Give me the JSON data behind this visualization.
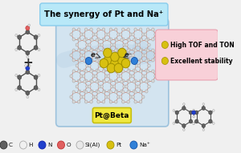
{
  "title": "The synergy of Pt and Na⁺",
  "title_box_color": "#b8e8f8",
  "title_box_edge": "#88ccec",
  "result_box_color": "#f8d0d8",
  "result_box_edge": "#e8a0b0",
  "result_lines": [
    "High TOF and TON",
    "Excellent stability"
  ],
  "ptbeta_label": "Pt@Beta",
  "ptbeta_box_color": "#f0e840",
  "ptbeta_box_edge": "#c8c010",
  "legend_items": [
    {
      "label": "C",
      "color": "#606060",
      "edge": "#303030"
    },
    {
      "label": "H",
      "color": "#f0f0f0",
      "edge": "#aaaaaa"
    },
    {
      "label": "N",
      "color": "#2040cc",
      "edge": "#1020aa"
    },
    {
      "label": "O",
      "color": "#e06060",
      "edge": "#c03030"
    },
    {
      "label": "Si(Al)",
      "color": "#e8e8e8",
      "edge": "#aaaaaa"
    },
    {
      "label": "Pt",
      "color": "#d8c010",
      "edge": "#a09000"
    },
    {
      "label": "Na⁺",
      "color": "#3080d8",
      "edge": "#1050a8"
    }
  ],
  "electron_label": "e⁻",
  "plus_sign": "+",
  "bg_color": "#f0f0f0",
  "main_box_color": "#c0dcf0",
  "main_box_edge": "#70a8d0",
  "zeolite_frame_color": "#d08878",
  "zeolite_node_color": "#d8d8d8",
  "zeolite_node_edge": "#aaaaaa",
  "pt_cluster_color": "#d8c010",
  "pt_cluster_edge": "#a09000",
  "na_ion_color": "#3080d8",
  "na_ion_edge": "#1050a8",
  "arrow_color": "#b8c8d8",
  "molecule_bond_color": "#505050",
  "molecule_C_color": "#606060",
  "molecule_H_color": "#e8e8e8",
  "molecule_N_color": "#2040cc",
  "molecule_O_color": "#e06060"
}
